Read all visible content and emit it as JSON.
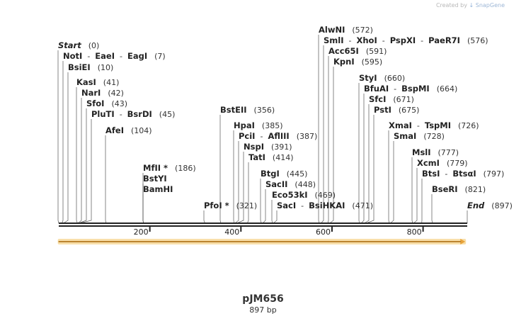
{
  "credit": {
    "prefix": "Created by",
    "brand": "SnapGene"
  },
  "plasmid": {
    "name": "pJM656",
    "length_label": "897 bp",
    "length": 897
  },
  "colors": {
    "backbone": "#222222",
    "feature": "#e8a33a",
    "feature_glow": "#f8dfaa",
    "label": "#222222"
  },
  "feature": {
    "name": "arrow-feature",
    "start": 1,
    "end": 888,
    "direction": "forward"
  },
  "ruler": {
    "ticks": [
      200,
      400,
      600,
      800
    ]
  },
  "sites": [
    {
      "names": [
        "Start"
      ],
      "pos": 0,
      "pos_label": "(0)",
      "italic": true
    },
    {
      "names": [
        "NotI",
        "EaeI",
        "EagI"
      ],
      "pos": 7,
      "pos_label": "(7)"
    },
    {
      "names": [
        "BsiEI"
      ],
      "pos": 10,
      "pos_label": "(10)"
    },
    {
      "names": [
        "KasI"
      ],
      "pos": 41,
      "pos_label": "(41)"
    },
    {
      "names": [
        "NarI"
      ],
      "pos": 42,
      "pos_label": "(42)"
    },
    {
      "names": [
        "SfoI"
      ],
      "pos": 43,
      "pos_label": "(43)"
    },
    {
      "names": [
        "PluTI",
        "BsrDI"
      ],
      "pos": 45,
      "pos_label": "(45)"
    },
    {
      "names": [
        "AfeI"
      ],
      "pos": 104,
      "pos_label": "(104)"
    },
    {
      "names": [
        "MfII *"
      ],
      "pos": 186,
      "pos_label": "(186)"
    },
    {
      "names": [
        "BstYI"
      ],
      "pos": 186,
      "pos_label": ""
    },
    {
      "names": [
        "BamHI"
      ],
      "pos": 186,
      "pos_label": ""
    },
    {
      "names": [
        "PfoI *"
      ],
      "pos": 321,
      "pos_label": "(321)"
    },
    {
      "names": [
        "BstEII"
      ],
      "pos": 356,
      "pos_label": "(356)"
    },
    {
      "names": [
        "HpaI"
      ],
      "pos": 385,
      "pos_label": "(385)"
    },
    {
      "names": [
        "PciI",
        "AflIII"
      ],
      "pos": 387,
      "pos_label": "(387)"
    },
    {
      "names": [
        "NspI"
      ],
      "pos": 391,
      "pos_label": "(391)"
    },
    {
      "names": [
        "TatI"
      ],
      "pos": 414,
      "pos_label": "(414)"
    },
    {
      "names": [
        "BtgI"
      ],
      "pos": 445,
      "pos_label": "(445)"
    },
    {
      "names": [
        "SacII"
      ],
      "pos": 448,
      "pos_label": "(448)"
    },
    {
      "names": [
        "Eco53kI"
      ],
      "pos": 469,
      "pos_label": "(469)"
    },
    {
      "names": [
        "SacI",
        "BsiHKAI"
      ],
      "pos": 471,
      "pos_label": "(471)"
    },
    {
      "names": [
        "AlwNI"
      ],
      "pos": 572,
      "pos_label": "(572)"
    },
    {
      "names": [
        "SmlI",
        "XhoI",
        "PspXI",
        "PaeR7I"
      ],
      "pos": 576,
      "pos_label": "(576)"
    },
    {
      "names": [
        "Acc65I"
      ],
      "pos": 591,
      "pos_label": "(591)"
    },
    {
      "names": [
        "KpnI"
      ],
      "pos": 595,
      "pos_label": "(595)"
    },
    {
      "names": [
        "StyI"
      ],
      "pos": 660,
      "pos_label": "(660)"
    },
    {
      "names": [
        "BfuAI",
        "BspMI"
      ],
      "pos": 664,
      "pos_label": "(664)"
    },
    {
      "names": [
        "SfcI"
      ],
      "pos": 671,
      "pos_label": "(671)"
    },
    {
      "names": [
        "PstI"
      ],
      "pos": 675,
      "pos_label": "(675)"
    },
    {
      "names": [
        "XmaI",
        "TspMI"
      ],
      "pos": 726,
      "pos_label": "(726)"
    },
    {
      "names": [
        "SmaI"
      ],
      "pos": 728,
      "pos_label": "(728)"
    },
    {
      "names": [
        "MslI"
      ],
      "pos": 777,
      "pos_label": "(777)"
    },
    {
      "names": [
        "XcmI"
      ],
      "pos": 779,
      "pos_label": "(779)"
    },
    {
      "names": [
        "BtsI",
        "BtsαI"
      ],
      "pos": 797,
      "pos_label": "(797)"
    },
    {
      "names": [
        "BseRI"
      ],
      "pos": 821,
      "pos_label": "(821)"
    },
    {
      "names": [
        "End"
      ],
      "pos": 897,
      "pos_label": "(897)",
      "italic": true
    }
  ]
}
